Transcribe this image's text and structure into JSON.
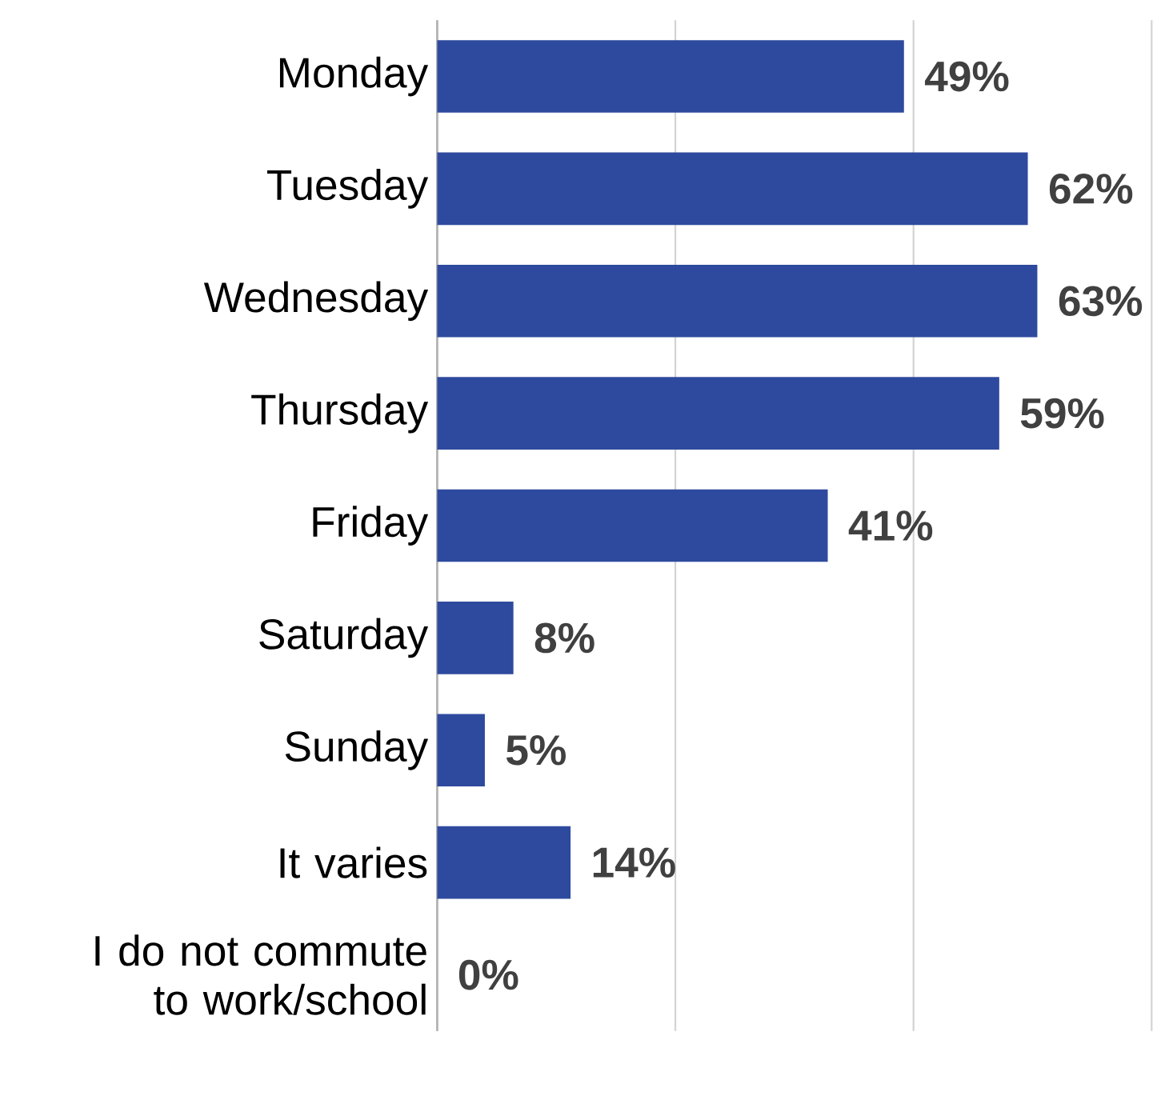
{
  "chart_data": {
    "type": "bar",
    "orientation": "horizontal",
    "categories": [
      "Monday",
      "Tuesday",
      "Wednesday",
      "Thursday",
      "Friday",
      "Saturday",
      "Sunday",
      "It varies",
      "I do not commute to work/school"
    ],
    "values": [
      49,
      62,
      63,
      59,
      41,
      8,
      5,
      14,
      0
    ],
    "value_labels": [
      "49%",
      "62%",
      "63%",
      "59%",
      "41%",
      "8%",
      "5%",
      "14%",
      "0%"
    ],
    "color": "#2e4a9e",
    "xlim": [
      0,
      75
    ],
    "xticks": [
      {
        "value": 0,
        "label": null
      },
      {
        "value": 25,
        "label": null
      },
      {
        "value": 50,
        "label": null
      },
      {
        "value": 75,
        "label": null
      }
    ],
    "grid": "x"
  }
}
